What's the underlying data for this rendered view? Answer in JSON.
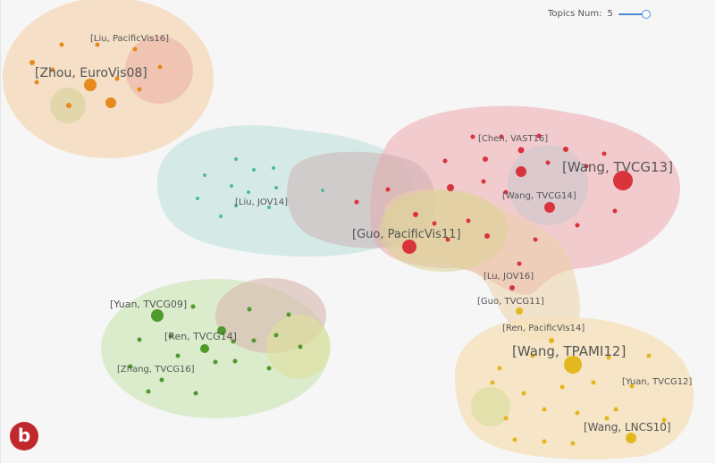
{
  "controls": {
    "topics_label": "Topics Num:",
    "topics_value": "5"
  },
  "badge": "b",
  "theme": {
    "orange": "#e8891e",
    "red": "#d9343c",
    "teal": "#4fb7a6",
    "green": "#4f9a2b",
    "yellow": "#e3b71e"
  },
  "labels": [
    {
      "text": "[Liu, PacificVis16]"
    },
    {
      "text": "[Zhou, EuroVis08]"
    },
    {
      "text": "[Chen, VAST16]"
    },
    {
      "text": "[Wang, TVCG13]"
    },
    {
      "text": "[Wang, TVCG14]"
    },
    {
      "text": "[Liu, JOV14]"
    },
    {
      "text": "[Guo, PacificVis11]"
    },
    {
      "text": "[Lu, JOV16]"
    },
    {
      "text": "[Guo, TVCG11]"
    },
    {
      "text": "[Ren, PacificVis14]"
    },
    {
      "text": "[Wang, TPAMI12]"
    },
    {
      "text": "[Yuan, TVCG12]"
    },
    {
      "text": "[Wang, LNCS10]"
    },
    {
      "text": "[Yuan, TVCG09]"
    },
    {
      "text": "[Ren, TVCG14]"
    },
    {
      "text": "[Zhang, TVCG16]"
    }
  ]
}
